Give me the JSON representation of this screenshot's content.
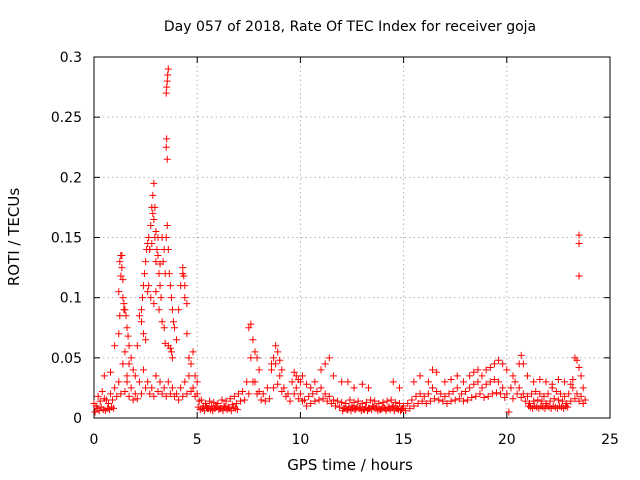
{
  "chart_data": {
    "type": "scatter",
    "title": "Day 057 of 2018, Rate Of TEC Index for receiver goja",
    "xlabel": "GPS time / hours",
    "ylabel": "ROTI / TECUs",
    "xlim": [
      0,
      25
    ],
    "ylim": [
      0,
      0.3
    ],
    "xticks": [
      0,
      5,
      10,
      15,
      20,
      25
    ],
    "xtick_labels": [
      "0",
      "5",
      "10",
      "15",
      "20",
      "25"
    ],
    "yticks": [
      0,
      0.05,
      0.1,
      0.15,
      0.2,
      0.25,
      0.3
    ],
    "ytick_labels": [
      "0",
      "0.05",
      "0.1",
      "0.15",
      "0.2",
      "0.25",
      "0.3"
    ],
    "grid": true,
    "marker": "+",
    "color": "#ff0000",
    "series": [
      {
        "name": "ROTI",
        "x": [
          0.0,
          0.2,
          0.4,
          0.6,
          0.8,
          1.0,
          1.2,
          1.4,
          1.6,
          1.8,
          2.0,
          2.2,
          2.4,
          2.6,
          2.8,
          3.0,
          3.2,
          3.4,
          3.6,
          3.8,
          4.0,
          4.2,
          4.4,
          4.6,
          4.8,
          5.0,
          5.2,
          5.4,
          5.6,
          5.8,
          6.0,
          6.2,
          6.4,
          6.6,
          6.8,
          7.0,
          7.2,
          7.4,
          7.6,
          7.8,
          8.0,
          8.2,
          8.4,
          8.6,
          8.8,
          9.0,
          9.2,
          9.4,
          9.6,
          9.8,
          10.0,
          10.2,
          10.4,
          10.6,
          10.8,
          11.0,
          11.2,
          11.4,
          11.6,
          11.8,
          12.0,
          12.2,
          12.4,
          12.6,
          12.8,
          13.0,
          13.2,
          13.4,
          13.6,
          13.8,
          14.0,
          14.2,
          14.4,
          14.6,
          14.8,
          15.0,
          15.2,
          15.4,
          15.6,
          15.8,
          16.0,
          16.2,
          16.4,
          16.6,
          16.8,
          17.0,
          17.2,
          17.4,
          17.6,
          17.8,
          18.0,
          18.2,
          18.4,
          18.6,
          18.8,
          19.0,
          19.2,
          19.4,
          19.6,
          19.8,
          20.0,
          20.2,
          20.4,
          20.6,
          20.8,
          21.0,
          21.2,
          21.4,
          21.6,
          21.8,
          22.0,
          22.2,
          22.4,
          22.6,
          22.8,
          23.0,
          23.2,
          23.4,
          23.6,
          23.8,
          0.1,
          0.3,
          0.5,
          0.7,
          0.9,
          1.1,
          1.3,
          1.5,
          1.7,
          1.9,
          2.1,
          2.3,
          2.5,
          2.7,
          2.9,
          3.1,
          3.3,
          3.5,
          3.7,
          3.9,
          4.1,
          4.3,
          4.5,
          4.7,
          4.9,
          5.1,
          5.3,
          5.5,
          5.7,
          5.9,
          6.1,
          6.3,
          6.5,
          6.7,
          6.9,
          7.1,
          7.3,
          7.5,
          7.7,
          7.9,
          8.1,
          8.3,
          8.5,
          8.7,
          8.9,
          9.1,
          9.3,
          9.5,
          9.7,
          9.9,
          10.1,
          10.3,
          10.5,
          10.7,
          10.9,
          11.1,
          11.3,
          11.5,
          11.7,
          11.9,
          12.1,
          12.3,
          12.5,
          12.7,
          12.9,
          13.1,
          13.3,
          13.5,
          13.7,
          13.9,
          14.1,
          14.3,
          14.5,
          14.7,
          14.9,
          15.1,
          15.3,
          15.5,
          15.7,
          15.9,
          16.1,
          16.3,
          16.5,
          16.7,
          16.9,
          17.1,
          17.3,
          17.5,
          17.7,
          17.9,
          18.1,
          18.3,
          18.5,
          18.7,
          18.9,
          19.1,
          19.3,
          19.5,
          19.7,
          19.9,
          20.1,
          20.3,
          20.5,
          20.7,
          20.9,
          21.1,
          21.3,
          21.5,
          21.7,
          21.9,
          22.1,
          22.3,
          22.5,
          22.7,
          22.9,
          23.1,
          23.3,
          23.5,
          23.7,
          0.5,
          0.8,
          1.0,
          1.2,
          1.25,
          1.3,
          1.35,
          1.4,
          1.45,
          1.5,
          1.6,
          1.7,
          1.8,
          1.9,
          2.0,
          2.1,
          2.2,
          2.3,
          2.35,
          2.4,
          2.45,
          2.5,
          2.55,
          2.6,
          2.65,
          2.7,
          2.75,
          2.8,
          2.85,
          2.9,
          2.95,
          3.0,
          3.05,
          3.1,
          3.15,
          3.2,
          3.25,
          3.3,
          3.35,
          3.4,
          3.45,
          3.5,
          3.55,
          3.6,
          3.65,
          3.7,
          3.75,
          3.8,
          3.85,
          3.9,
          4.0,
          4.1,
          4.2,
          4.3,
          4.4,
          4.5,
          4.6,
          4.7,
          4.8,
          4.9,
          5.0,
          3.5,
          3.52,
          3.55,
          3.57,
          3.6,
          3.5,
          3.52,
          3.55,
          2.85,
          2.9,
          2.95,
          3.0,
          2.7,
          2.8,
          3.1,
          3.2,
          2.6,
          2.65,
          2.75,
          2.9,
          3.0,
          3.15,
          3.3,
          3.4,
          3.45,
          3.6,
          3.7,
          3.75,
          3.8,
          4.3,
          4.35,
          4.4,
          4.5,
          1.2,
          1.25,
          1.3,
          1.35,
          1.4,
          1.45,
          1.5,
          1.55,
          1.6,
          1.65,
          1.7,
          2.3,
          2.4,
          2.5,
          7.5,
          7.6,
          7.7,
          7.8,
          7.9,
          8.0,
          8.6,
          8.7,
          8.8,
          8.9,
          9.0,
          9.1,
          9.7,
          9.8,
          9.9,
          10.0,
          10.1,
          10.3,
          10.5,
          10.7,
          11.0,
          11.2,
          11.4,
          11.6,
          12.0,
          12.3,
          12.6,
          13.0,
          13.3,
          14.5,
          14.8,
          15.5,
          15.8,
          16.2,
          16.4,
          16.6,
          17.0,
          17.3,
          17.6,
          17.9,
          18.2,
          18.4,
          18.6,
          18.8,
          19.0,
          19.2,
          19.4,
          19.6,
          19.8,
          20.0,
          20.3,
          20.6,
          20.7,
          20.8,
          21.0,
          21.3,
          21.6,
          21.9,
          22.2,
          22.5,
          22.8,
          23.1,
          23.2,
          23.3,
          23.4,
          23.5,
          23.5,
          23.5,
          23.5,
          23.6,
          23.7,
          0.05,
          0.15,
          0.25,
          0.35,
          0.45,
          0.55,
          0.65,
          0.75,
          0.85,
          0.95,
          5.05,
          5.15,
          5.25,
          5.35,
          5.45,
          5.55,
          5.65,
          5.75,
          5.85,
          5.95,
          6.05,
          6.15,
          6.25,
          6.35,
          6.45,
          6.55,
          6.65,
          6.75,
          6.85,
          6.95,
          12.05,
          12.15,
          12.25,
          12.35,
          12.45,
          12.55,
          12.65,
          12.75,
          12.85,
          12.95,
          13.05,
          13.15,
          13.25,
          13.35,
          13.45,
          13.55,
          13.65,
          13.75,
          13.85,
          13.95,
          14.05,
          14.15,
          14.25,
          14.35,
          14.45,
          14.55,
          14.65,
          14.75,
          14.85,
          14.95,
          21.05,
          21.15,
          21.25,
          21.35,
          21.45,
          21.55,
          21.65,
          21.75,
          21.85,
          21.95,
          22.05,
          22.15,
          22.25,
          22.35,
          22.45,
          22.55,
          22.65,
          22.75,
          22.85,
          22.95
        ],
        "y": [
          0.012,
          0.018,
          0.022,
          0.015,
          0.02,
          0.025,
          0.03,
          0.045,
          0.035,
          0.025,
          0.02,
          0.03,
          0.04,
          0.03,
          0.025,
          0.035,
          0.03,
          0.025,
          0.03,
          0.025,
          0.02,
          0.025,
          0.03,
          0.035,
          0.025,
          0.02,
          0.015,
          0.012,
          0.014,
          0.013,
          0.012,
          0.015,
          0.014,
          0.016,
          0.018,
          0.02,
          0.022,
          0.03,
          0.05,
          0.03,
          0.022,
          0.02,
          0.025,
          0.04,
          0.045,
          0.035,
          0.025,
          0.02,
          0.03,
          0.025,
          0.02,
          0.015,
          0.018,
          0.02,
          0.022,
          0.025,
          0.02,
          0.018,
          0.015,
          0.014,
          0.013,
          0.012,
          0.015,
          0.013,
          0.014,
          0.012,
          0.013,
          0.015,
          0.014,
          0.012,
          0.013,
          0.014,
          0.015,
          0.013,
          0.012,
          0.01,
          0.012,
          0.015,
          0.018,
          0.02,
          0.018,
          0.02,
          0.025,
          0.022,
          0.02,
          0.018,
          0.02,
          0.022,
          0.025,
          0.02,
          0.022,
          0.025,
          0.028,
          0.03,
          0.025,
          0.028,
          0.03,
          0.032,
          0.03,
          0.025,
          0.02,
          0.025,
          0.03,
          0.025,
          0.02,
          0.018,
          0.02,
          0.022,
          0.02,
          0.018,
          0.02,
          0.025,
          0.022,
          0.02,
          0.018,
          0.02,
          0.025,
          0.02,
          0.018,
          0.015,
          0.01,
          0.014,
          0.016,
          0.012,
          0.015,
          0.018,
          0.02,
          0.022,
          0.018,
          0.015,
          0.016,
          0.02,
          0.025,
          0.02,
          0.018,
          0.022,
          0.02,
          0.018,
          0.02,
          0.018,
          0.015,
          0.018,
          0.02,
          0.022,
          0.018,
          0.014,
          0.01,
          0.008,
          0.01,
          0.009,
          0.008,
          0.01,
          0.009,
          0.011,
          0.012,
          0.014,
          0.015,
          0.02,
          0.03,
          0.02,
          0.015,
          0.014,
          0.016,
          0.025,
          0.028,
          0.022,
          0.018,
          0.014,
          0.02,
          0.016,
          0.014,
          0.01,
          0.012,
          0.014,
          0.015,
          0.016,
          0.014,
          0.012,
          0.01,
          0.009,
          0.008,
          0.007,
          0.01,
          0.008,
          0.009,
          0.007,
          0.008,
          0.01,
          0.009,
          0.007,
          0.008,
          0.009,
          0.01,
          0.008,
          0.007,
          0.006,
          0.008,
          0.01,
          0.012,
          0.014,
          0.012,
          0.014,
          0.016,
          0.015,
          0.014,
          0.012,
          0.014,
          0.015,
          0.016,
          0.014,
          0.015,
          0.017,
          0.018,
          0.02,
          0.017,
          0.018,
          0.02,
          0.021,
          0.02,
          0.017,
          0.005,
          0.016,
          0.02,
          0.017,
          0.014,
          0.012,
          0.014,
          0.015,
          0.014,
          0.012,
          0.014,
          0.016,
          0.015,
          0.014,
          0.012,
          0.014,
          0.016,
          0.014,
          0.012,
          0.035,
          0.038,
          0.06,
          0.07,
          0.085,
          0.118,
          0.135,
          0.1,
          0.09,
          0.055,
          0.03,
          0.045,
          0.05,
          0.04,
          0.035,
          0.06,
          0.085,
          0.09,
          0.1,
          0.11,
          0.12,
          0.13,
          0.14,
          0.145,
          0.15,
          0.14,
          0.16,
          0.175,
          0.185,
          0.195,
          0.15,
          0.13,
          0.14,
          0.15,
          0.12,
          0.11,
          0.1,
          0.15,
          0.13,
          0.14,
          0.12,
          0.15,
          0.16,
          0.14,
          0.12,
          0.11,
          0.1,
          0.09,
          0.08,
          0.075,
          0.065,
          0.09,
          0.11,
          0.12,
          0.1,
          0.07,
          0.05,
          0.045,
          0.055,
          0.035,
          0.03,
          0.27,
          0.275,
          0.28,
          0.285,
          0.29,
          0.225,
          0.232,
          0.215,
          0.17,
          0.165,
          0.175,
          0.155,
          0.14,
          0.145,
          0.135,
          0.128,
          0.105,
          0.11,
          0.1,
          0.095,
          0.105,
          0.09,
          0.08,
          0.075,
          0.062,
          0.06,
          0.058,
          0.055,
          0.05,
          0.125,
          0.118,
          0.11,
          0.095,
          0.105,
          0.13,
          0.135,
          0.125,
          0.115,
          0.095,
          0.09,
          0.085,
          0.075,
          0.068,
          0.06,
          0.08,
          0.07,
          0.065,
          0.075,
          0.078,
          0.065,
          0.055,
          0.05,
          0.04,
          0.045,
          0.05,
          0.06,
          0.055,
          0.048,
          0.04,
          0.038,
          0.035,
          0.032,
          0.03,
          0.035,
          0.028,
          0.025,
          0.03,
          0.04,
          0.045,
          0.05,
          0.035,
          0.03,
          0.03,
          0.025,
          0.028,
          0.025,
          0.03,
          0.025,
          0.03,
          0.035,
          0.03,
          0.04,
          0.038,
          0.03,
          0.032,
          0.035,
          0.03,
          0.035,
          0.038,
          0.04,
          0.035,
          0.04,
          0.042,
          0.045,
          0.048,
          0.045,
          0.04,
          0.035,
          0.045,
          0.052,
          0.045,
          0.035,
          0.03,
          0.032,
          0.03,
          0.028,
          0.032,
          0.03,
          0.028,
          0.032,
          0.05,
          0.048,
          0.042,
          0.145,
          0.152,
          0.118,
          0.035,
          0.025,
          0.005,
          0.008,
          0.006,
          0.009,
          0.007,
          0.006,
          0.008,
          0.007,
          0.009,
          0.008,
          0.009,
          0.007,
          0.008,
          0.006,
          0.009,
          0.008,
          0.007,
          0.006,
          0.008,
          0.009,
          0.007,
          0.008,
          0.006,
          0.009,
          0.007,
          0.008,
          0.006,
          0.009,
          0.008,
          0.007,
          0.006,
          0.008,
          0.007,
          0.009,
          0.006,
          0.008,
          0.007,
          0.009,
          0.008,
          0.006,
          0.007,
          0.009,
          0.006,
          0.008,
          0.007,
          0.009,
          0.008,
          0.006,
          0.007,
          0.008,
          0.009,
          0.006,
          0.008,
          0.007,
          0.009,
          0.006,
          0.008,
          0.007,
          0.006,
          0.008,
          0.01,
          0.009,
          0.008,
          0.01,
          0.009,
          0.008,
          0.01,
          0.009,
          0.008,
          0.01,
          0.009,
          0.008,
          0.01,
          0.009,
          0.008,
          0.01,
          0.009,
          0.008,
          0.01,
          0.009
        ]
      }
    ]
  }
}
